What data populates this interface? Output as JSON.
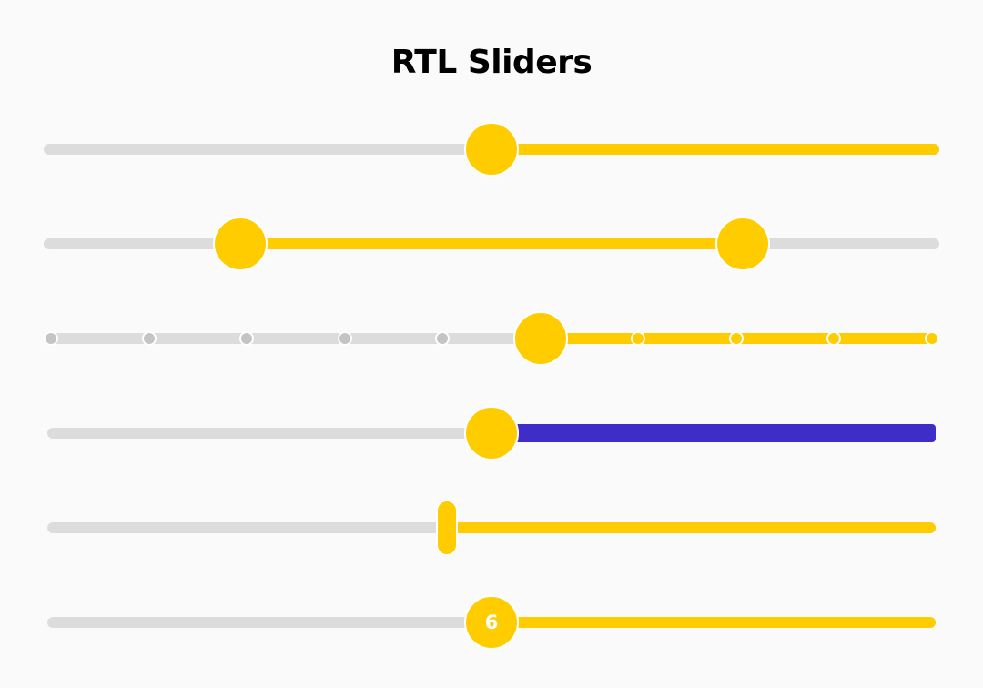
{
  "page": {
    "title": "RTL Sliders"
  },
  "colors": {
    "background": "#fafafa",
    "rail": "#dcdcdc",
    "accent": "#ffcc00",
    "alt_accent": "#3f2dc7",
    "mark_inactive": "#c4c4c4",
    "thumb_label": "#ffffff"
  },
  "sliders": [
    {
      "id": "slider-1",
      "kind": "single",
      "direction": "rtl",
      "min": 0,
      "max": 100,
      "value": 50,
      "fill_color": "#ffcc00"
    },
    {
      "id": "slider-2",
      "kind": "range",
      "direction": "rtl",
      "min": 0,
      "max": 100,
      "values": [
        22,
        78
      ],
      "fill_color": "#ffcc00"
    },
    {
      "id": "slider-3",
      "kind": "stepped",
      "direction": "rtl",
      "min": 0,
      "max": 9,
      "step": 1,
      "value": 4,
      "fill_color": "#ffcc00"
    },
    {
      "id": "slider-4",
      "kind": "single",
      "direction": "rtl",
      "min": 0,
      "max": 100,
      "value": 50,
      "fill_color": "#3f2dc7"
    },
    {
      "id": "slider-5",
      "kind": "bar-thumb",
      "direction": "rtl",
      "min": 0,
      "max": 100,
      "value": 55,
      "fill_color": "#ffcc00"
    },
    {
      "id": "slider-6",
      "kind": "labeled",
      "direction": "rtl",
      "min": 1,
      "max": 11,
      "value": 6,
      "thumb_label": "6",
      "fill_color": "#ffcc00"
    }
  ]
}
